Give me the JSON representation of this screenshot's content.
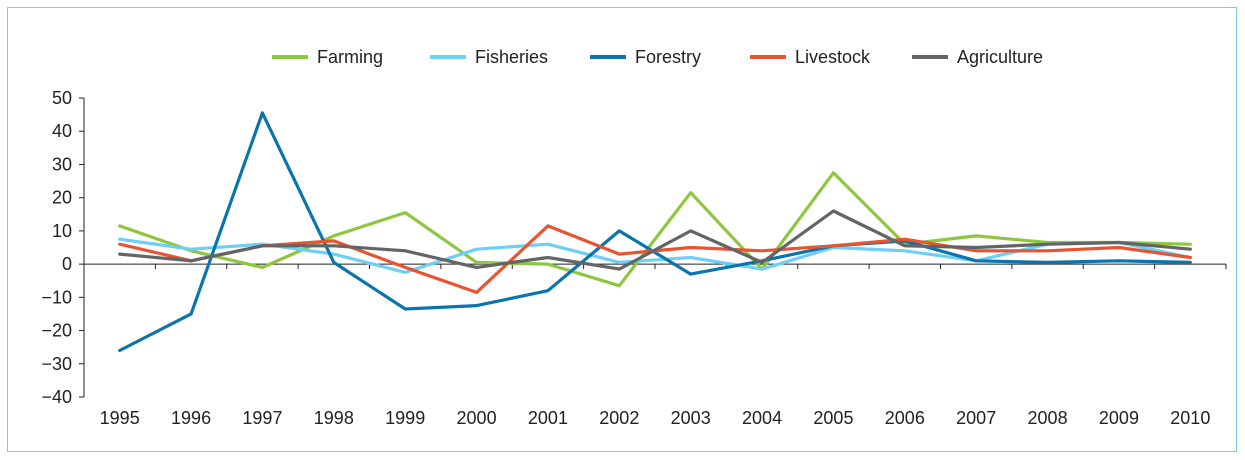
{
  "chart_data": {
    "type": "line",
    "categories": [
      "1995",
      "1996",
      "1997",
      "1998",
      "1999",
      "2000",
      "2001",
      "2002",
      "2003",
      "2004",
      "2005",
      "2006",
      "2007",
      "2008",
      "2009",
      "2010"
    ],
    "ylim": [
      -40,
      50
    ],
    "yticks": [
      50,
      40,
      30,
      20,
      10,
      0,
      -10,
      -20,
      -30,
      -40
    ],
    "ytick_labels": [
      "50",
      "40",
      "30",
      "20",
      "10",
      "0",
      "−10",
      "−20",
      "−30",
      "−40"
    ],
    "grid": false,
    "legend": "top",
    "series": [
      {
        "name": "Farming",
        "color": "#8dc63f",
        "values": [
          11.5,
          4,
          -1,
          8.5,
          15.5,
          0.5,
          0,
          -6.5,
          21.5,
          -1.5,
          27.5,
          6,
          8.5,
          6.5,
          6.5,
          6
        ]
      },
      {
        "name": "Fisheries",
        "color": "#6dcff6",
        "values": [
          7.5,
          4.5,
          6,
          3,
          -2.5,
          4.5,
          6,
          0.5,
          2,
          -1.5,
          5,
          4,
          1,
          6,
          6.5,
          2
        ]
      },
      {
        "name": "Forestry",
        "color": "#0a75ad",
        "values": [
          -26,
          -15,
          45.5,
          0.5,
          -13.5,
          -12.5,
          -8,
          10,
          -3,
          1,
          5.5,
          7,
          1,
          0.5,
          1,
          0.5
        ]
      },
      {
        "name": "Livestock",
        "color": "#e8542f",
        "values": [
          6,
          1,
          5.5,
          7,
          -1,
          -8.5,
          11.5,
          3,
          5,
          4,
          5.5,
          7.5,
          4,
          4,
          5,
          2
        ]
      },
      {
        "name": "Agriculture",
        "color": "#636466",
        "values": [
          3,
          1,
          5.5,
          5.5,
          4,
          -1,
          2,
          -1.5,
          10,
          0.5,
          16,
          5.5,
          5,
          6,
          6.5,
          4.5
        ]
      }
    ]
  }
}
